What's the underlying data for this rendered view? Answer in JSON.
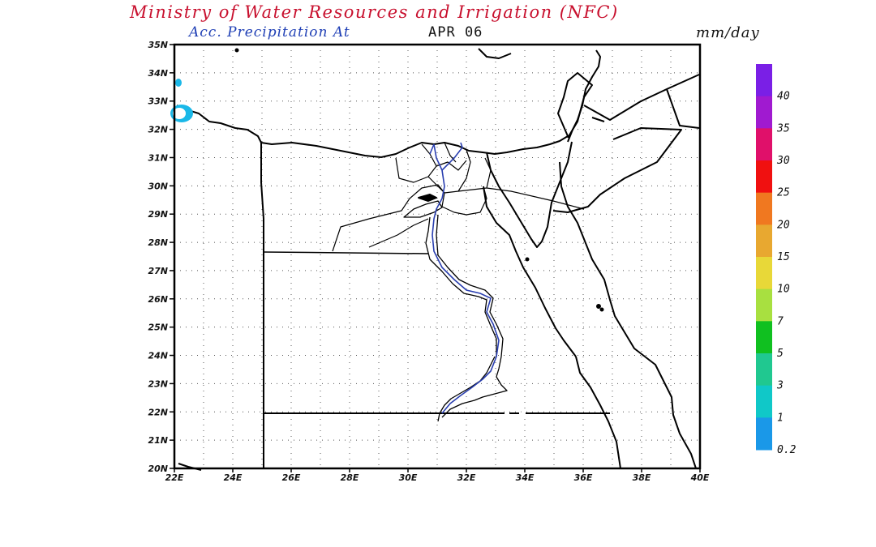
{
  "header": {
    "title": "Ministry of Water Resources and Irrigation (NFC)",
    "subtitle_label": "Acc. Precipitation  At",
    "date": "APR 06",
    "units": "mm/day"
  },
  "map": {
    "lat_ticks": [
      "35N",
      "34N",
      "33N",
      "32N",
      "31N",
      "30N",
      "29N",
      "28N",
      "27N",
      "26N",
      "25N",
      "24N",
      "23N",
      "22N",
      "21N",
      "20N"
    ],
    "lon_ticks": [
      "22E",
      "24E",
      "26E",
      "28E",
      "30E",
      "32E",
      "34E",
      "36E",
      "38E",
      "40E"
    ],
    "lat_range": [
      20,
      35
    ],
    "lon_range": [
      22,
      40
    ],
    "grid": true,
    "grid_style": "dotted"
  },
  "colorbar": {
    "labels": [
      "40",
      "35",
      "30",
      "25",
      "20",
      "15",
      "10",
      "7",
      "5",
      "3",
      "1",
      "0.2"
    ],
    "colors": [
      "#7a1fe6",
      "#a01ad0",
      "#e0106a",
      "#f01010",
      "#f07820",
      "#e8a830",
      "#e8d838",
      "#a8e040",
      "#10c020",
      "#20c890",
      "#10c8c8",
      "#1a98e8"
    ]
  }
}
